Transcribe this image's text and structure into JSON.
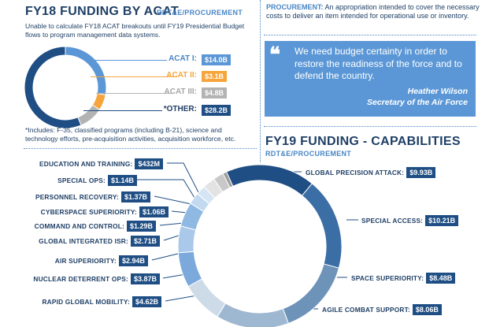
{
  "acat_section": {
    "title": "FY18 FUNDING BY ACAT",
    "subtitle": "RDT&E/PROCUREMENT",
    "note": "Unable to calculate FY18 ACAT breakouts until FY19 Presidential Budget flows to program management data systems.",
    "footnote": "*Includes: F-35, classified programs (including B-21), science and technology efforts, pre-acquisition activities, acquisition workforce, etc.",
    "items": [
      {
        "label": "ACAT I:",
        "value": "$14.0B",
        "color": "#5b97d6",
        "label_color": "#4a86c5"
      },
      {
        "label": "ACAT II:",
        "value": "$3.1B",
        "color": "#f5a53c",
        "label_color": "#f5a53c"
      },
      {
        "label": "ACAT III:",
        "value": "$4.8B",
        "color": "#b3b3b3",
        "label_color": "#a6a6a6"
      },
      {
        "label": "*OTHER:",
        "value": "$28.2B",
        "color": "#1f4e84",
        "label_color": "#1f3f66"
      }
    ]
  },
  "procurement_def": {
    "term": "PROCUREMENT:",
    "text": "An appropriation intended to cover the necessary costs to deliver an item intended for operational use or inventory."
  },
  "quote": {
    "mark": "❝",
    "text": "We need budget certainty in order to restore the readiness of the force and to defend the country.",
    "author": "Heather Wilson",
    "role": "Secretary of the Air Force"
  },
  "capabilities_section": {
    "title": "FY19 FUNDING - CAPABILITIES",
    "subtitle": "RDT&E/PROCUREMENT"
  },
  "chart_data": {
    "type": "pie",
    "variant": "donut",
    "unit": "$B",
    "slices": [
      {
        "label": "GLOBAL PRECISION ATTACK:",
        "value": 9.93,
        "display": "$9.93B",
        "color": "#1f4e84"
      },
      {
        "label": "SPECIAL ACCESS:",
        "value": 10.21,
        "display": "$10.21B",
        "color": "#3b6ea5"
      },
      {
        "label": "SPACE SUPERIORITY:",
        "value": 8.48,
        "display": "$8.48B",
        "color": "#6e93b8"
      },
      {
        "label": "AGILE COMBAT SUPPORT:",
        "value": 8.06,
        "display": "$8.06B",
        "color": "#9fb8d1"
      },
      {
        "label": "RAPID GLOBAL MOBILITY:",
        "value": 4.62,
        "display": "$4.62B",
        "color": "#cddbe8"
      },
      {
        "label": "NUCLEAR DETERRENT OPS:",
        "value": 3.87,
        "display": "$3.87B",
        "color": "#7ba9dc"
      },
      {
        "label": "AIR SUPERIORITY:",
        "value": 2.94,
        "display": "$2.94B",
        "color": "#a9c8ea"
      },
      {
        "label": "GLOBAL INTEGRATED ISR:",
        "value": 2.71,
        "display": "$2.71B",
        "color": "#8fb8e3"
      },
      {
        "label": "COMMAND AND CONTROL:",
        "value": 1.29,
        "display": "$1.29B",
        "color": "#c3d9f0"
      },
      {
        "label": "CYBERSPACE SUPERIORITY:",
        "value": 1.06,
        "display": "$1.06B",
        "color": "#d6e5f4"
      },
      {
        "label": "PERSONNEL RECOVERY:",
        "value": 1.37,
        "display": "$1.37B",
        "color": "#e3e3e3"
      },
      {
        "label": "SPECIAL OPS:",
        "value": 1.14,
        "display": "$1.14B",
        "color": "#c8c8c8"
      },
      {
        "label": "EDUCATION AND TRAINING:",
        "value": 0.432,
        "display": "$432M",
        "color": "#9d9d9d"
      }
    ]
  }
}
